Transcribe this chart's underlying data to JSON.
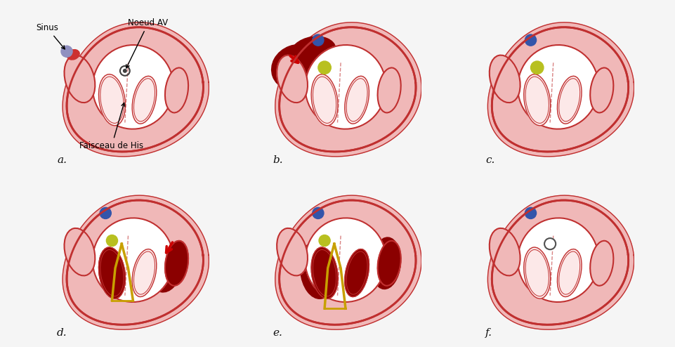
{
  "background_color": "#f5f5f5",
  "fig_width": 9.61,
  "fig_height": 4.94,
  "dpi": 100,
  "labels": [
    "a.",
    "b.",
    "c.",
    "d.",
    "e.",
    "f."
  ],
  "annotations": {
    "sinus": "Sinus",
    "noeud_av": "Noeud AV",
    "faisceau": "Faisceau de His"
  },
  "heart_fill": "#f0b8b8",
  "heart_border": "#c03030",
  "heart_dark": "#8b0000",
  "heart_interior": "#ffffff",
  "heart_interior2": "#f8e8e8",
  "node_yellow": "#b8c020",
  "node_blue": "#3355aa",
  "node_white": "#ffffff",
  "conduction_yellow": "#c8a000",
  "arrow_color": "#cc0000",
  "label_color": "#111111",
  "annotation_color": "#000000"
}
